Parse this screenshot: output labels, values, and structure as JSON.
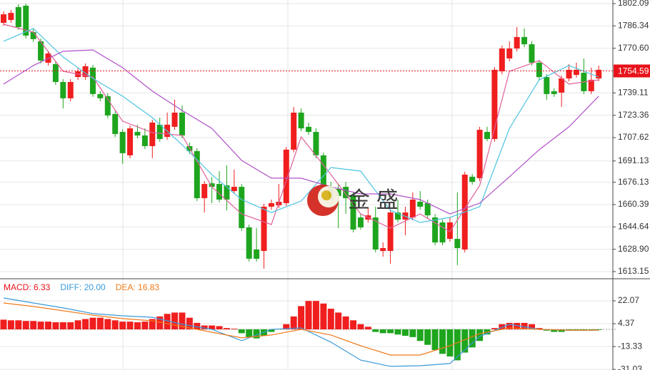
{
  "chart_data": [
    {
      "type": "candlestick",
      "up_color": "#f01e1e",
      "down_color": "#1ea51e",
      "xlim": [
        -0.48,
        81.9
      ],
      "ylim": [
        1608.6,
        1804.6
      ],
      "yticks": [
        1802.09,
        1786.34,
        {
          "value": 1770.6,
          "label": "1770.60"
        },
        1739.11,
        1723.36,
        1707.62,
        1691.13,
        1676.13,
        1660.39,
        1644.64,
        {
          "value": 1628.9,
          "label": "1628.90"
        },
        1613.15
      ],
      "grid": true,
      "last_price": 1754.59,
      "last_price_color": "#e8121a",
      "open": [
        1788.5,
        1790.5,
        1799.6,
        1800.6,
        1782.0,
        1775.5,
        1760.4,
        1759.4,
        1746.8,
        1735.3,
        1750.3,
        1750.3,
        1756.9,
        1738.3,
        1736.8,
        1724.2,
        1711.6,
        1695.1,
        1711.6,
        1709.1,
        1701.6,
        1716.7,
        1708.1,
        1715.2,
        1725.2,
        1701.6,
        1698.1,
        1664.9,
        1675.4,
        1674.9,
        1673.9,
        1669.9,
        1672.9,
        1644.3,
        1628.7,
        1627.7,
        1658.9,
        1659.9,
        1661.4,
        1699.1,
        1725.2,
        1715.2,
        1711.6,
        1695.1,
        1672.9,
        1671.4,
        1672.9,
        1666.4,
        1651.3,
        1649.8,
        1651.3,
        1627.7,
        1627.7,
        1654.8,
        1649.8,
        1651.3,
        1662.4,
        1661.4,
        1651.3,
        1647.8,
        1636.2,
        1636.2,
        1628.7,
        1680.0,
        1679.0,
        1711.6,
        1706.6,
        1754.3,
        1763.4,
        1770.4,
        1778.5,
        1773.4,
        1760.4,
        1750.3,
        1740.3,
        1739.3,
        1749.3,
        1751.8,
        1753.3,
        1740.3,
        1749.3
      ],
      "high": [
        1796.6,
        1797.5,
        1801.6,
        1802.1,
        1784.0,
        1777.5,
        1768.9,
        1761.4,
        1748.8,
        1748.8,
        1756.4,
        1759.9,
        1758.9,
        1740.3,
        1738.8,
        1726.2,
        1713.6,
        1716.2,
        1716.7,
        1714.1,
        1720.2,
        1721.7,
        1725.2,
        1734.3,
        1730.2,
        1704.1,
        1700.1,
        1676.9,
        1679.9,
        1684.0,
        1688.0,
        1685.0,
        1674.9,
        1646.3,
        1643.8,
        1660.9,
        1663.9,
        1674.9,
        1701.1,
        1729.2,
        1728.2,
        1718.2,
        1714.1,
        1697.1,
        1676.4,
        1674.9,
        1676.4,
        1668.9,
        1653.8,
        1657.9,
        1658.9,
        1633.7,
        1656.8,
        1663.9,
        1658.9,
        1668.9,
        1669.9,
        1663.9,
        1653.8,
        1649.8,
        1651.3,
        1668.9,
        1683.5,
        1682.0,
        1715.2,
        1715.2,
        1757.4,
        1772.4,
        1775.5,
        1785.5,
        1784.5,
        1775.5,
        1762.4,
        1752.3,
        1742.3,
        1751.3,
        1759.4,
        1760.4,
        1763.4,
        1756.9,
        1758.4
      ],
      "low": [
        1786.5,
        1788.5,
        1783.5,
        1777.5,
        1775.0,
        1759.9,
        1758.4,
        1744.8,
        1728.2,
        1733.2,
        1748.3,
        1748.3,
        1736.3,
        1733.2,
        1721.2,
        1708.1,
        1689.0,
        1693.1,
        1707.1,
        1699.6,
        1693.1,
        1704.6,
        1706.1,
        1713.1,
        1707.1,
        1696.1,
        1662.9,
        1654.8,
        1661.4,
        1661.9,
        1656.3,
        1667.9,
        1641.8,
        1620.2,
        1620.2,
        1615.2,
        1656.8,
        1657.9,
        1659.4,
        1697.1,
        1712.1,
        1709.6,
        1693.1,
        1670.9,
        1658.9,
        1643.8,
        1653.8,
        1640.8,
        1642.8,
        1647.8,
        1626.7,
        1623.7,
        1618.7,
        1647.8,
        1638.8,
        1649.3,
        1656.8,
        1650.8,
        1631.7,
        1631.7,
        1634.2,
        1617.7,
        1626.7,
        1674.4,
        1676.9,
        1705.1,
        1704.6,
        1752.3,
        1761.4,
        1768.4,
        1771.4,
        1758.4,
        1748.3,
        1734.3,
        1736.3,
        1729.2,
        1747.3,
        1749.8,
        1738.3,
        1738.3,
        1747.3
      ],
      "close": [
        1794.5,
        1795.5,
        1785.5,
        1779.5,
        1777.0,
        1761.9,
        1766.9,
        1746.8,
        1735.3,
        1746.8,
        1754.3,
        1757.9,
        1738.3,
        1735.3,
        1723.2,
        1710.1,
        1696.6,
        1714.1,
        1709.1,
        1701.6,
        1718.2,
        1706.6,
        1716.7,
        1725.2,
        1709.1,
        1698.1,
        1664.9,
        1674.9,
        1672.9,
        1663.9,
        1663.9,
        1672.9,
        1643.8,
        1622.2,
        1622.2,
        1658.9,
        1661.4,
        1662.4,
        1699.1,
        1725.2,
        1714.1,
        1711.6,
        1695.1,
        1672.9,
        1663.9,
        1666.4,
        1664.9,
        1642.8,
        1644.3,
        1652.8,
        1628.7,
        1629.7,
        1654.8,
        1649.8,
        1654.8,
        1663.9,
        1658.9,
        1652.8,
        1633.7,
        1633.7,
        1647.8,
        1629.7,
        1681.5,
        1676.4,
        1713.1,
        1706.6,
        1755.4,
        1770.4,
        1770.4,
        1778.5,
        1773.4,
        1760.4,
        1750.3,
        1738.3,
        1738.3,
        1749.3,
        1755.4,
        1755.4,
        1740.3,
        1748.3,
        1755.4
      ],
      "lines": [
        {
          "color": "#e0609a",
          "x": [
            0,
            4,
            8,
            12,
            16,
            20,
            24,
            28,
            32,
            36,
            40,
            44,
            48,
            52,
            56,
            60,
            64,
            68,
            72,
            76,
            80
          ],
          "values": [
            1787.5,
            1782.0,
            1754.4,
            1750.3,
            1719.2,
            1711.1,
            1709.1,
            1672.9,
            1653.8,
            1646.3,
            1708.1,
            1681.5,
            1653.8,
            1643.8,
            1653.8,
            1641.3,
            1673.9,
            1754.4,
            1761.9,
            1745.3,
            1748.3
          ]
        },
        {
          "color": "#4cc4e0",
          "x": [
            0,
            4,
            8,
            12,
            16,
            20,
            24,
            28,
            32,
            36,
            40,
            44,
            48,
            52,
            56,
            60,
            64,
            68,
            72,
            76,
            80
          ],
          "values": [
            1775.5,
            1784.5,
            1764.4,
            1749.3,
            1736.8,
            1721.7,
            1702.6,
            1681.5,
            1663.9,
            1654.8,
            1662.9,
            1686.5,
            1684.0,
            1656.3,
            1647.8,
            1651.3,
            1658.9,
            1714.1,
            1748.3,
            1758.4,
            1750.3
          ]
        },
        {
          "color": "#b050c8",
          "x": [
            0,
            4,
            8,
            12,
            16,
            20,
            24,
            28,
            32,
            36,
            40,
            44,
            48,
            52,
            56,
            60,
            64,
            68,
            72,
            76,
            80
          ],
          "values": [
            1745.3,
            1758.4,
            1768.4,
            1769.4,
            1756.9,
            1740.3,
            1726.7,
            1714.1,
            1691.5,
            1679.0,
            1679.0,
            1672.9,
            1667.9,
            1667.9,
            1663.9,
            1653.8,
            1661.4,
            1680.0,
            1699.1,
            1715.2,
            1736.8
          ]
        }
      ]
    },
    {
      "type": "macd",
      "xlim": [
        -0.48,
        81.9
      ],
      "ylim": [
        -31.5,
        38.1
      ],
      "yticks": [
        22.07,
        4.37,
        -13.33,
        -31.03
      ],
      "legend": [
        {
          "text": "MACD: 6.33",
          "color": "#e8121a"
        },
        {
          "text": "DIFF: 20.00",
          "color": "#3a9ad9"
        },
        {
          "text": "DEA: 16.83",
          "color": "#f07a1a"
        }
      ],
      "up_color": "#f01e1e",
      "down_color": "#1ea51e",
      "histogram": [
        7.5,
        7,
        7,
        6.5,
        6.5,
        6,
        6,
        5.5,
        5.5,
        5.5,
        7,
        8,
        9,
        9,
        8,
        7,
        6,
        6,
        5.5,
        6,
        8,
        10,
        12,
        13,
        13,
        9,
        5,
        3,
        3,
        2.5,
        1,
        0.5,
        -3,
        -6,
        -7,
        -5,
        -2,
        0.5,
        4,
        10,
        18,
        22,
        22,
        20,
        16,
        13,
        10,
        7,
        4,
        2,
        -2,
        -3,
        -3,
        -4,
        -5,
        -6,
        -9,
        -12,
        -16,
        -19,
        -21,
        -24,
        -18,
        -14,
        -9,
        -4,
        1,
        4,
        5,
        5,
        5,
        4,
        1,
        -1,
        -2,
        -2,
        -1,
        -1,
        -1,
        -0.5,
        -0.5
      ],
      "lines": [
        {
          "color": "#3a9ad9",
          "x": [
            0,
            4,
            8,
            12,
            16,
            20,
            24,
            28,
            32,
            36,
            40,
            44,
            48,
            52,
            56,
            60,
            64,
            68,
            72,
            76,
            80
          ],
          "values": [
            24.3,
            20.4,
            16.6,
            12.2,
            10.5,
            9.4,
            3.9,
            0,
            -8.8,
            0,
            1.1,
            -9.9,
            -23.8,
            -28.7,
            -28.2,
            -26.5,
            -5.5,
            3.9,
            0,
            -0.6,
            -0.6
          ]
        },
        {
          "color": "#f07a1a",
          "x": [
            0,
            4,
            8,
            12,
            16,
            20,
            24,
            28,
            32,
            36,
            40,
            44,
            48,
            52,
            56,
            60,
            64,
            68,
            72,
            76,
            80
          ],
          "values": [
            20.4,
            17.7,
            14.4,
            11.0,
            8.3,
            6.6,
            2.2,
            -2.2,
            -6.6,
            -4.4,
            0,
            -4.4,
            -12.7,
            -19.9,
            -19.9,
            -12.7,
            -3.3,
            1.1,
            0,
            -0.6,
            -0.6
          ]
        }
      ]
    }
  ],
  "watermark": "金 盛"
}
